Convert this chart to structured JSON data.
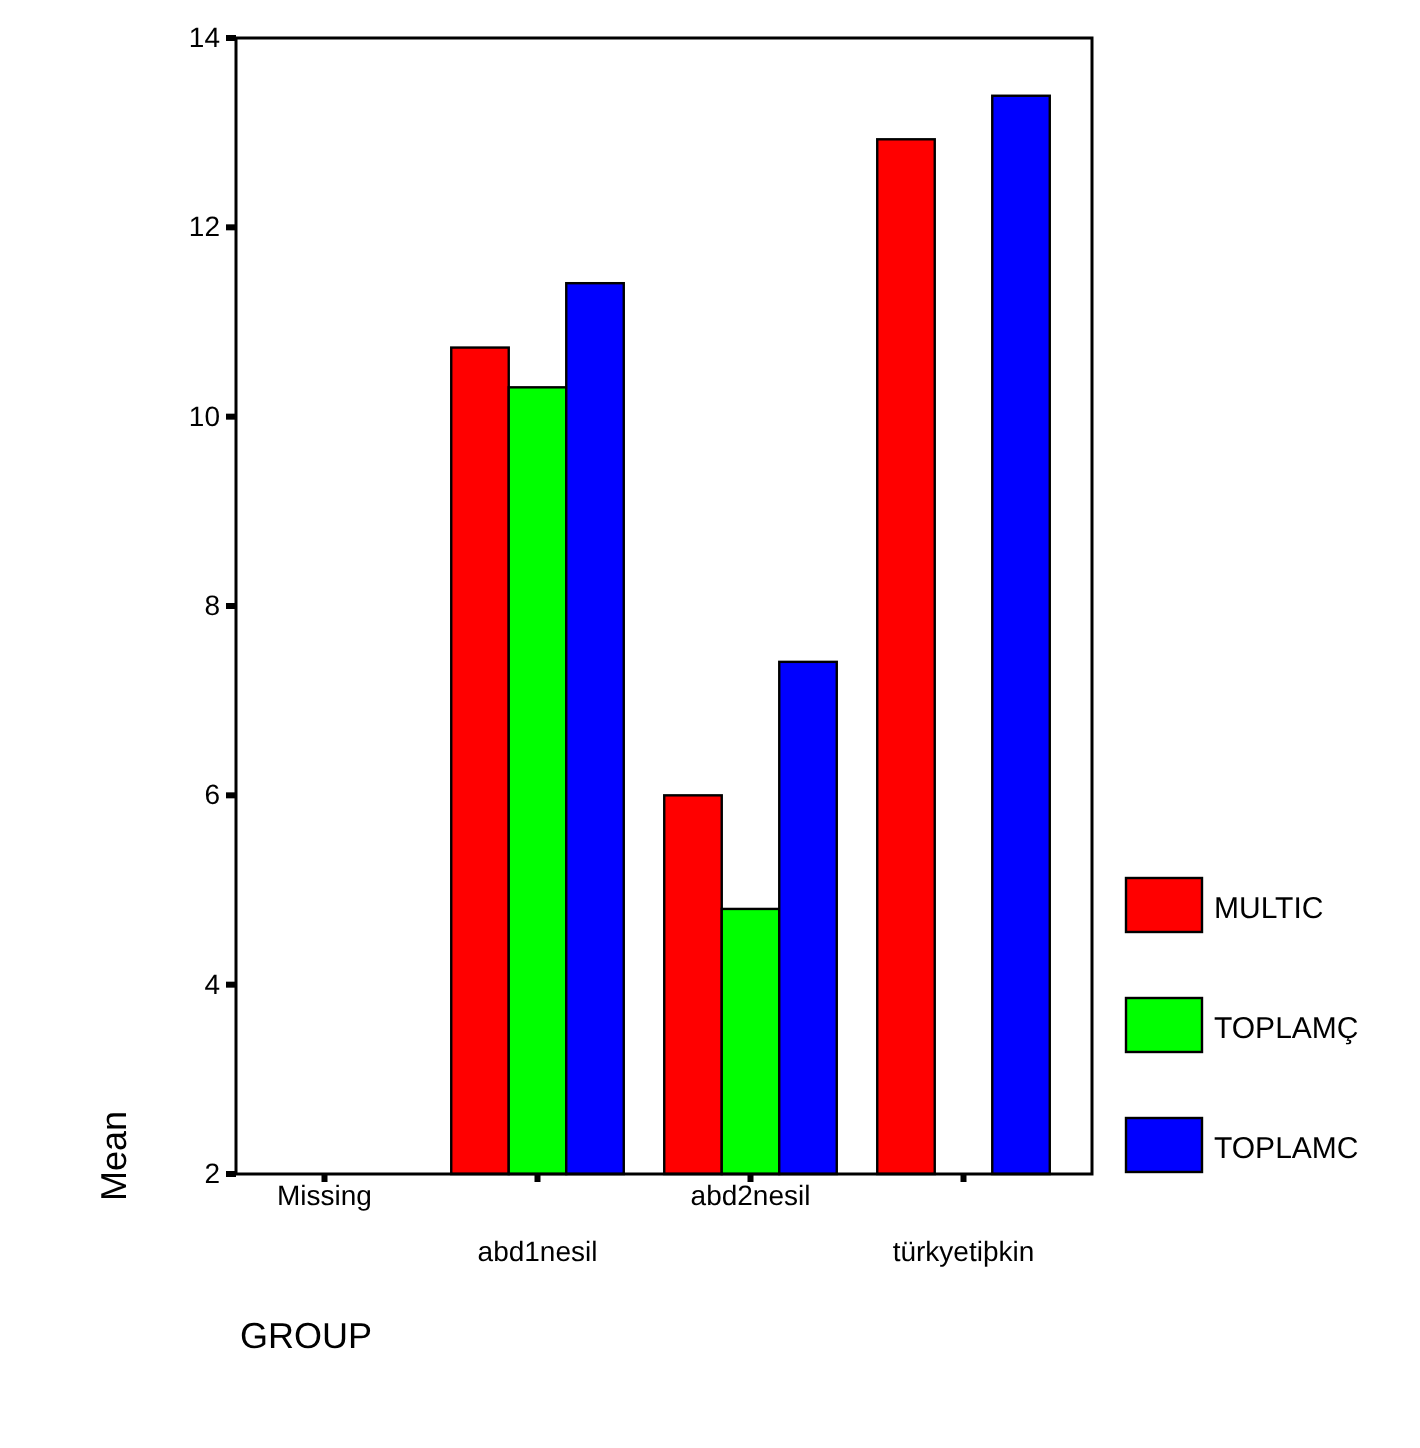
{
  "chart_data": {
    "type": "bar",
    "xlabel": "GROUP",
    "ylabel": "Mean",
    "categories": [
      "Missing",
      "abd1nesil",
      "abd2nesil",
      "türkyetiþkin"
    ],
    "series": [
      {
        "name": "MULTIC",
        "color": "#ff0000",
        "values": [
          null,
          10.73,
          6.0,
          12.93
        ]
      },
      {
        "name": "TOPLAMÇ",
        "color": "#00ff00",
        "values": [
          null,
          10.31,
          4.8,
          null
        ]
      },
      {
        "name": "TOPLAMC",
        "color": "#0000ff",
        "values": [
          null,
          11.41,
          7.41,
          13.39
        ]
      }
    ],
    "ylim": [
      2,
      14
    ],
    "yticks": [
      2,
      4,
      6,
      8,
      10,
      12,
      14
    ],
    "grid": false,
    "legend": "right"
  }
}
